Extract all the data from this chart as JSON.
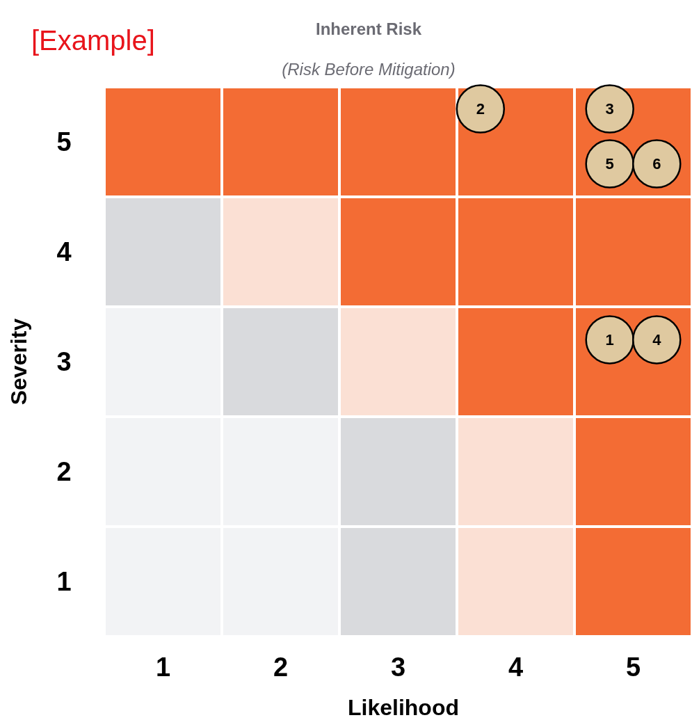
{
  "chart_data": {
    "type": "bar",
    "stacked": true,
    "title": "Inherent Risk",
    "subtitle": "(Risk Before Mitigation)",
    "xlabel": "Likelihood",
    "ylabel": "Severity",
    "annotations": [
      "[Example]"
    ],
    "xlim": [
      0,
      5
    ],
    "ylim": [
      0,
      5
    ],
    "xticks": [
      {
        "value": 0.5,
        "label": "1"
      },
      {
        "value": 1.5,
        "label": "2"
      },
      {
        "value": 2.5,
        "label": "3"
      },
      {
        "value": 3.5,
        "label": "4"
      },
      {
        "value": 4.5,
        "label": "5"
      }
    ],
    "yticks": [
      {
        "value": 0.5,
        "label": "1"
      },
      {
        "value": 1.5,
        "label": "2"
      },
      {
        "value": 2.5,
        "label": "3"
      },
      {
        "value": 3.5,
        "label": "4"
      },
      {
        "value": 4.5,
        "label": "5"
      }
    ],
    "series": [
      {
        "x": [
          0.5,
          1.5,
          2.5,
          3.5,
          4.5
        ],
        "values": [
          1,
          1,
          1,
          1,
          1
        ],
        "colors": [
          "#f2f3f5",
          "#f2f3f5",
          "#d9dadd",
          "#fbe0d4",
          "#f36c34"
        ]
      },
      {
        "x": [
          0.5,
          1.5,
          2.5,
          3.5,
          4.5
        ],
        "values": [
          1,
          1,
          1,
          1,
          1
        ],
        "colors": [
          "#f2f3f5",
          "#f2f3f5",
          "#d9dadd",
          "#fbe0d4",
          "#f36c34"
        ]
      },
      {
        "x": [
          0.5,
          1.5,
          2.5,
          3.5,
          4.5
        ],
        "values": [
          1,
          1,
          1,
          1,
          1
        ],
        "colors": [
          "#f2f3f5",
          "#d9dadd",
          "#fbe0d4",
          "#f36c34",
          "#f36c34"
        ]
      },
      {
        "x": [
          0.5,
          1.5,
          2.5,
          3.5,
          4.5
        ],
        "values": [
          1,
          1,
          1,
          1,
          1
        ],
        "colors": [
          "#d9dadd",
          "#fbe0d4",
          "#f36c34",
          "#f36c34",
          "#f36c34"
        ]
      },
      {
        "x": [
          0.5,
          1.5,
          2.5,
          3.5,
          4.5
        ],
        "values": [
          1,
          1,
          1,
          1,
          1
        ],
        "colors": [
          "#f36c34",
          "#f36c34",
          "#f36c34",
          "#f36c34",
          "#f36c34"
        ]
      },
      {
        "type": "scatter",
        "name": "1",
        "color": "#dfc9a0",
        "x": [
          4.3
        ],
        "values": [
          2.7
        ]
      },
      {
        "type": "scatter",
        "name": "2",
        "color": "#dfc9a0",
        "x": [
          3.2
        ],
        "values": [
          4.8
        ]
      },
      {
        "type": "scatter",
        "name": "3",
        "color": "#dfc9a0",
        "x": [
          4.3
        ],
        "values": [
          4.8
        ]
      },
      {
        "type": "scatter",
        "name": "4",
        "color": "#dfc9a0",
        "x": [
          4.7
        ],
        "values": [
          2.7
        ]
      },
      {
        "type": "scatter",
        "name": "5",
        "color": "#dfc9a0",
        "x": [
          4.3
        ],
        "values": [
          4.3
        ]
      },
      {
        "type": "scatter",
        "name": "6",
        "color": "#dfc9a0",
        "x": [
          4.7
        ],
        "values": [
          4.3
        ]
      }
    ]
  }
}
